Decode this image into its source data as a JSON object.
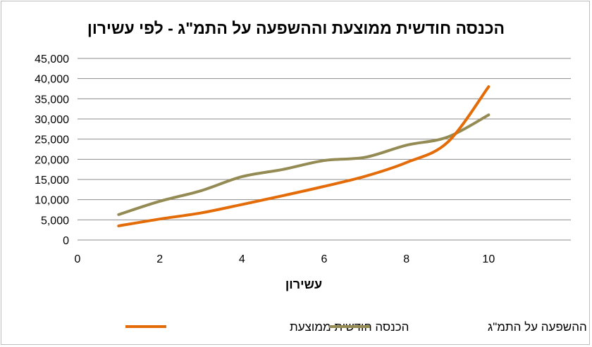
{
  "chart_data": {
    "type": "line",
    "title": "הכנסה חודשית ממוצעת וההשפעה על התמ\"ג - לפי עשירון",
    "xlabel": "עשירון",
    "ylabel": "",
    "xlim": [
      0,
      12
    ],
    "ylim": [
      0,
      45000
    ],
    "xticks": [
      "0",
      "2",
      "4",
      "6",
      "8",
      "10"
    ],
    "yticks": [
      "0",
      "5,000",
      "10,000",
      "15,000",
      "20,000",
      "25,000",
      "30,000",
      "35,000",
      "40,000",
      "45,000"
    ],
    "grid": true,
    "legend_position": "bottom",
    "x": [
      1,
      2,
      3,
      4,
      5,
      6,
      7,
      8,
      9,
      10
    ],
    "series": [
      {
        "name": "הכנסה חודשית ממוצעת",
        "color": "#E36C09",
        "values": [
          3500,
          5200,
          6700,
          8800,
          11000,
          13300,
          15800,
          19200,
          24200,
          38000
        ]
      },
      {
        "name": "ההשפעה על התמ\"ג",
        "color": "#948A54",
        "values": [
          6300,
          9600,
          12200,
          15700,
          17500,
          19700,
          20500,
          23500,
          25500,
          31000
        ]
      }
    ]
  }
}
